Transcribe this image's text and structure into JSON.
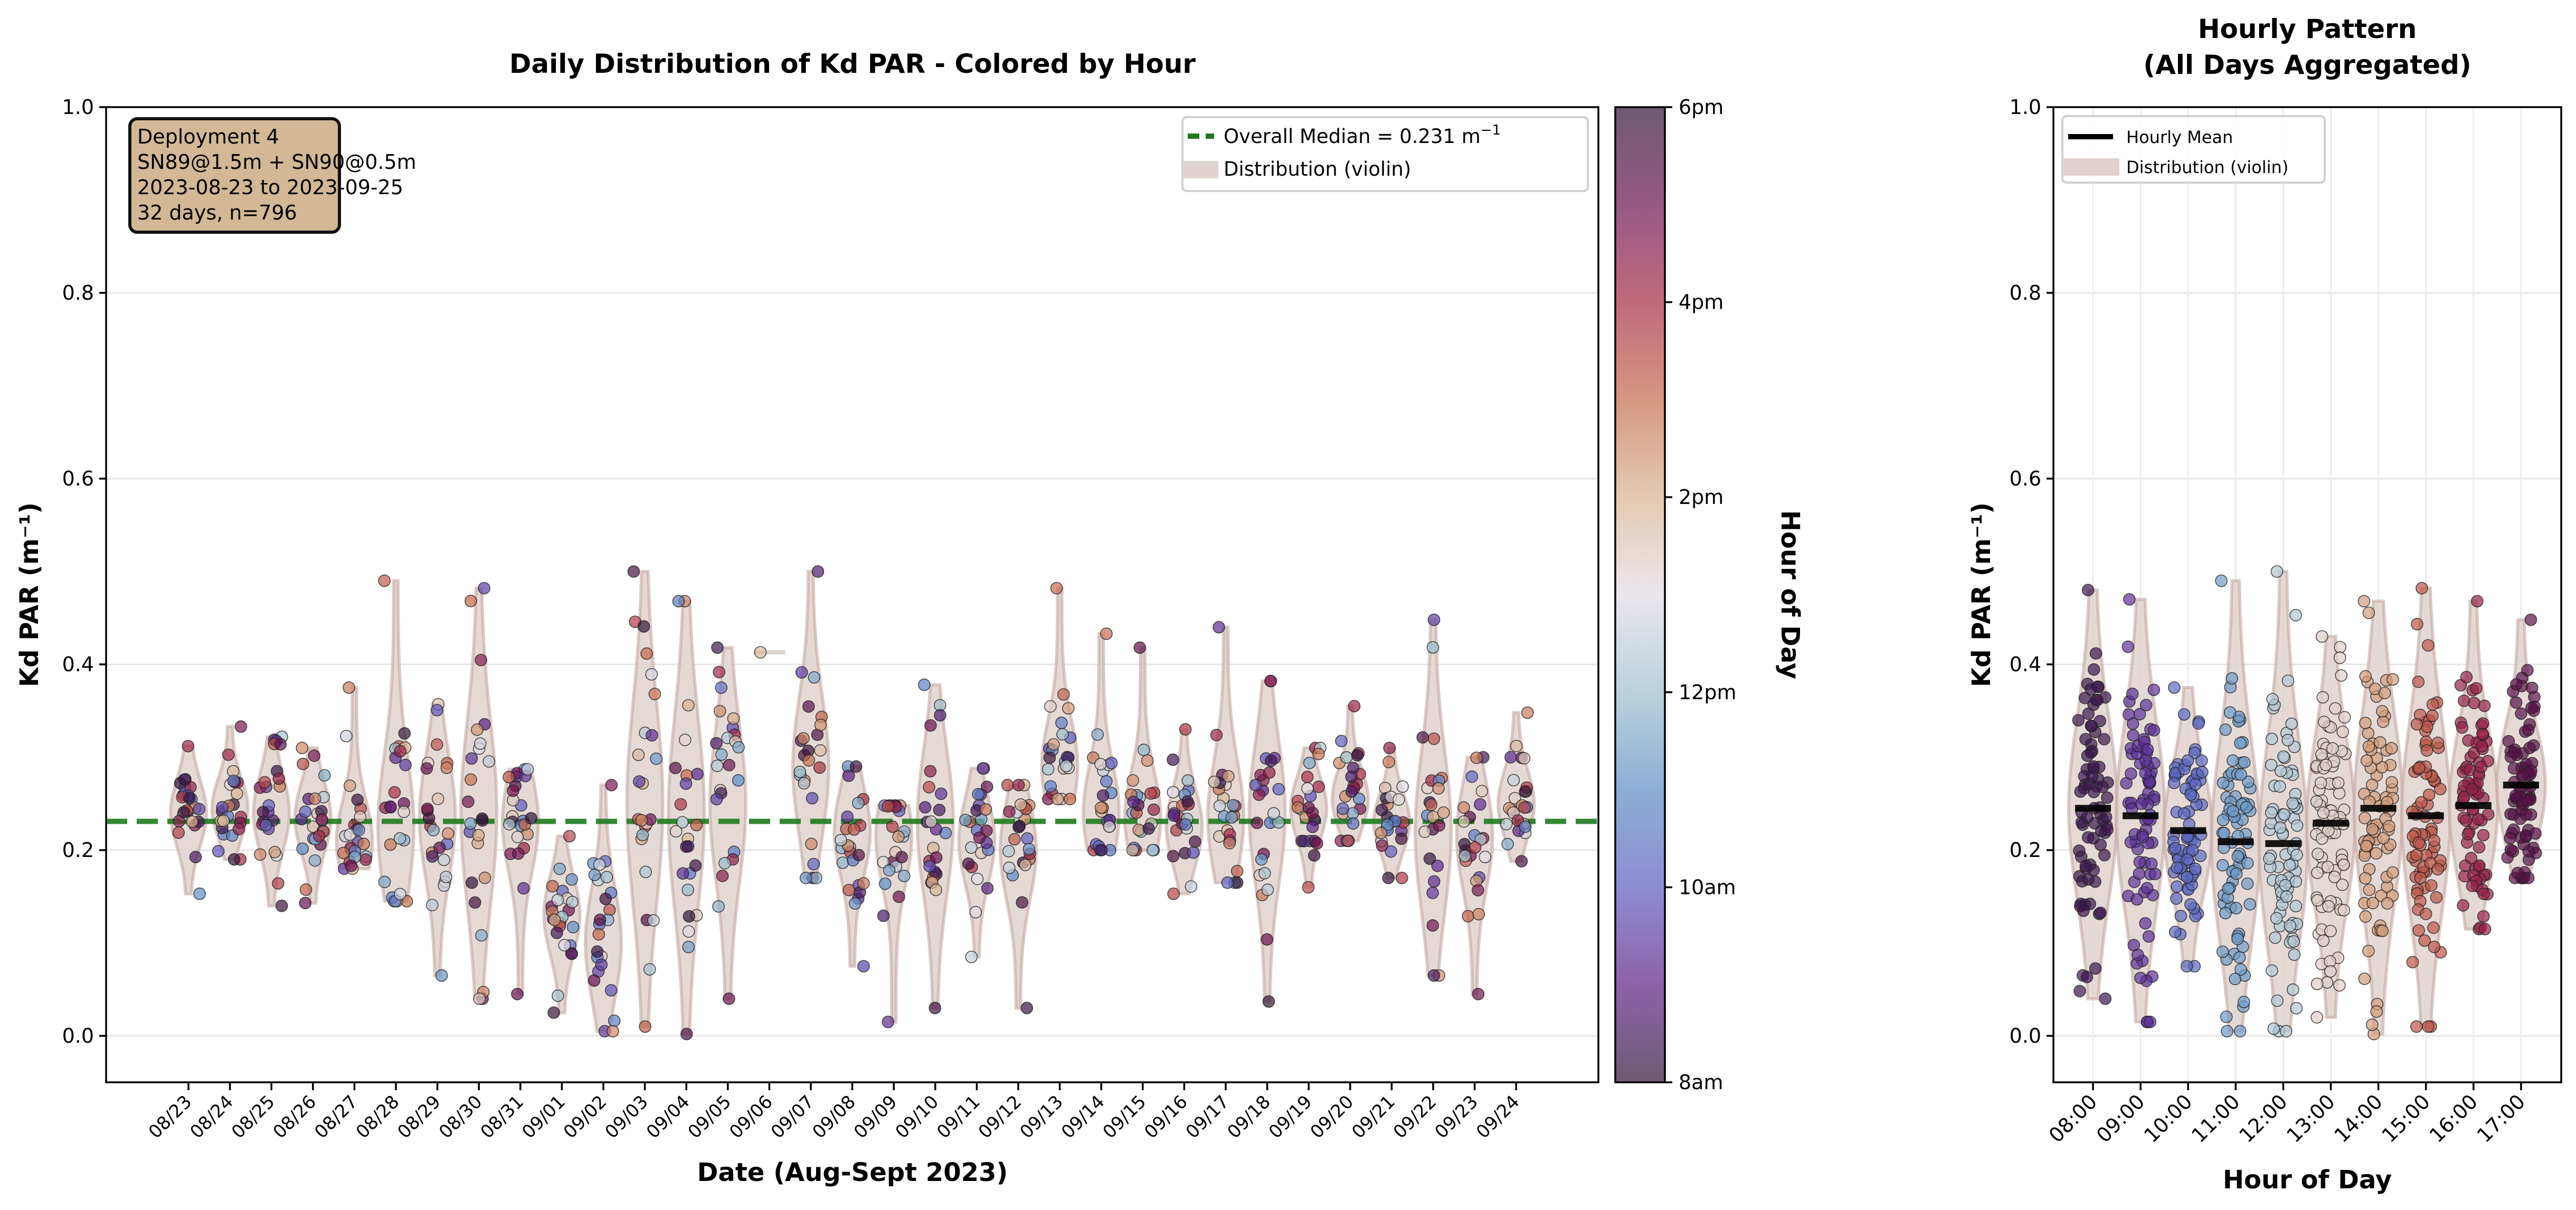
{
  "chart_data": [
    {
      "type": "violin-scatter",
      "title": "Daily Distribution of Kd PAR - Colored by Hour",
      "xlabel": "Date (Aug-Sept 2023)",
      "ylabel": "Kd PAR (m⁻¹)",
      "ylim": [
        -0.05,
        1.0
      ],
      "yticks": [
        "0.0",
        "0.2",
        "0.4",
        "0.6",
        "0.8",
        "1.0"
      ],
      "grid": true,
      "categories": [
        "08/23",
        "08/24",
        "08/25",
        "08/26",
        "08/27",
        "08/28",
        "08/29",
        "08/30",
        "08/31",
        "09/01",
        "09/02",
        "09/03",
        "09/04",
        "09/05",
        "09/06",
        "09/07",
        "09/08",
        "09/09",
        "09/10",
        "09/11",
        "09/12",
        "09/13",
        "09/14",
        "09/15",
        "09/16",
        "09/17",
        "09/18",
        "09/19",
        "09/20",
        "09/21",
        "09/22",
        "09/23",
        "09/24"
      ],
      "approx_min": [
        0.153,
        0.19,
        0.14,
        0.143,
        0.18,
        0.145,
        0.065,
        0.04,
        0.045,
        0.025,
        0.005,
        0.01,
        0.002,
        0.04,
        0.413,
        0.17,
        0.075,
        0.015,
        0.03,
        0.085,
        0.03,
        0.255,
        0.2,
        0.2,
        0.153,
        0.165,
        0.037,
        0.16,
        0.21,
        0.17,
        0.065,
        0.045,
        0.188
      ],
      "approx_max": [
        0.312,
        0.333,
        0.322,
        0.31,
        0.375,
        0.49,
        0.357,
        0.482,
        0.287,
        0.215,
        0.27,
        0.5,
        0.468,
        0.418,
        0.413,
        0.5,
        0.29,
        0.248,
        0.378,
        0.288,
        0.27,
        0.482,
        0.433,
        0.418,
        0.33,
        0.44,
        0.382,
        0.31,
        0.355,
        0.31,
        0.448,
        0.3,
        0.348
      ],
      "approx_center": [
        0.24,
        0.245,
        0.24,
        0.235,
        0.21,
        0.225,
        0.235,
        0.24,
        0.23,
        0.13,
        0.1,
        0.25,
        0.24,
        0.25,
        0.413,
        0.29,
        0.22,
        0.215,
        0.23,
        0.21,
        0.2,
        0.29,
        0.24,
        0.235,
        0.225,
        0.235,
        0.24,
        0.245,
        0.255,
        0.23,
        0.22,
        0.215,
        0.25
      ],
      "overall_median": 0.231,
      "legend": {
        "placement": "top-right",
        "median_label": "Overall Median = 0.231 m",
        "median_label_sup": "−1",
        "violin_label": "Distribution (violin)"
      },
      "info_box": [
        "Deployment 4",
        "SN89@1.5m + SN90@0.5m",
        "2023-08-23 to 2023-09-25",
        "32 days, n=796"
      ],
      "colorbar": {
        "label": "Hour of Day",
        "range": [
          8,
          18
        ],
        "ticks": [
          {
            "v": 8,
            "t": "8am"
          },
          {
            "v": 10,
            "t": "10am"
          },
          {
            "v": 12,
            "t": "12pm"
          },
          {
            "v": 14,
            "t": "2pm"
          },
          {
            "v": 16,
            "t": "4pm"
          },
          {
            "v": 18,
            "t": "6pm"
          }
        ]
      }
    },
    {
      "type": "violin-scatter",
      "title": [
        "Hourly Pattern",
        "(All Days Aggregated)"
      ],
      "xlabel": "Hour of Day",
      "ylabel": "Kd PAR (m⁻¹)",
      "ylim": [
        -0.05,
        1.0
      ],
      "yticks": [
        "0.0",
        "0.2",
        "0.4",
        "0.6",
        "0.8",
        "1.0"
      ],
      "grid": true,
      "categories": [
        "08:00",
        "09:00",
        "10:00",
        "11:00",
        "12:00",
        "13:00",
        "14:00",
        "15:00",
        "16:00",
        "17:00"
      ],
      "hourly_mean": [
        0.245,
        0.237,
        0.221,
        0.209,
        0.207,
        0.229,
        0.245,
        0.237,
        0.248,
        0.27
      ],
      "approx_min": [
        0.04,
        0.015,
        0.075,
        0.005,
        0.005,
        0.02,
        0.002,
        0.01,
        0.115,
        0.17
      ],
      "approx_max": [
        0.48,
        0.47,
        0.375,
        0.49,
        0.5,
        0.43,
        0.468,
        0.482,
        0.468,
        0.448
      ],
      "legend": {
        "placement": "top-left",
        "mean_label": "Hourly Mean",
        "violin_label": "Distribution (violin)"
      }
    }
  ],
  "colors": {
    "median_line": "#1e7b1e",
    "violin_fill": "#e0d2cf",
    "violin_edge": "#c4a8a2",
    "info_box_fill": "#d2b894",
    "colormap_by_hour": [
      {
        "h": 8,
        "c": "#2f1436"
      },
      {
        "h": 9,
        "c": "#5b1f87"
      },
      {
        "h": 10,
        "c": "#5e5cc0"
      },
      {
        "h": 11,
        "c": "#5b8bc6"
      },
      {
        "h": 12,
        "c": "#9ebfcb"
      },
      {
        "h": 13,
        "c": "#e2dbe5"
      },
      {
        "h": 14,
        "c": "#d8b38f"
      },
      {
        "h": 15,
        "c": "#c56a4a"
      },
      {
        "h": 16,
        "c": "#a82a45"
      },
      {
        "h": 17,
        "c": "#6b1050"
      },
      {
        "h": 18,
        "c": "#2f1436"
      }
    ]
  }
}
